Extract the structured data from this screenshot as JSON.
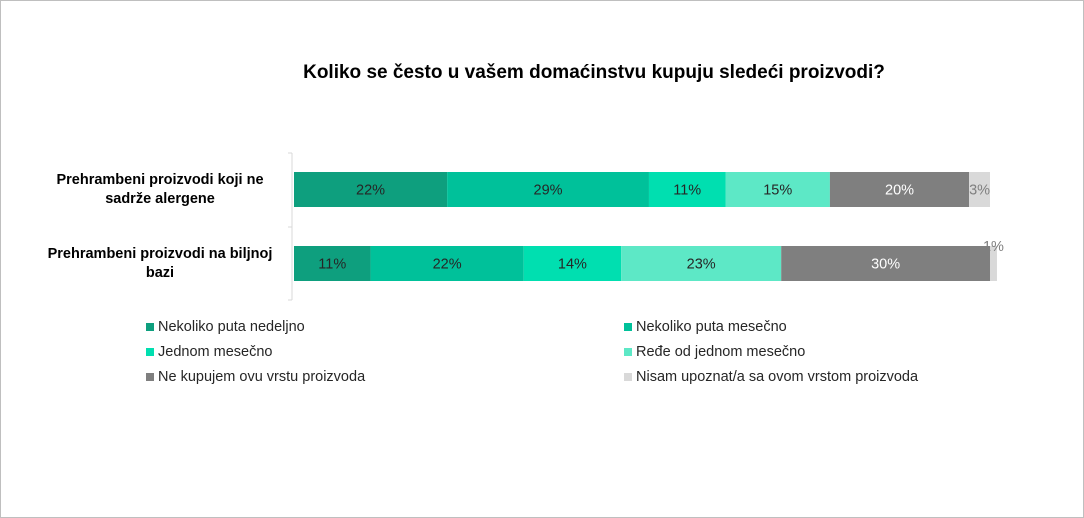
{
  "chart_data": {
    "type": "bar",
    "orientation": "horizontal",
    "stacked": true,
    "title": "Koliko se često u vašem domaćinstvu kupuju sledeći proizvodi?",
    "categories": [
      "Prehrambeni proizvodi koji ne sadrže alergene",
      "Prehrambeni proizvodi na biljnoj bazi"
    ],
    "xlim": [
      0,
      100
    ],
    "series": [
      {
        "name": "Nekoliko puta nedeljno",
        "values": [
          22,
          11
        ],
        "color": "#0e9f7e"
      },
      {
        "name": "Nekoliko puta mesečno",
        "values": [
          29,
          22
        ],
        "color": "#00c19a"
      },
      {
        "name": "Jednom mesečno",
        "values": [
          11,
          14
        ],
        "color": "#00dfb0"
      },
      {
        "name": "Ređe od jednom mesečno",
        "values": [
          15,
          23
        ],
        "color": "#5de8c6"
      },
      {
        "name": "Ne kupujem ovu vrstu proizvoda",
        "values": [
          20,
          30
        ],
        "color": "#7f7f7f"
      },
      {
        "name": "Nisam upoznat/a sa ovom vrstom proizvoda",
        "values": [
          3,
          1
        ],
        "color": "#d9d9d9"
      }
    ],
    "data_labels": [
      [
        "22%",
        "29%",
        "11%",
        "15%",
        "20%",
        "3%"
      ],
      [
        "11%",
        "22%",
        "14%",
        "23%",
        "30%",
        "1%"
      ]
    ],
    "legend_position": "bottom",
    "grid": false
  }
}
